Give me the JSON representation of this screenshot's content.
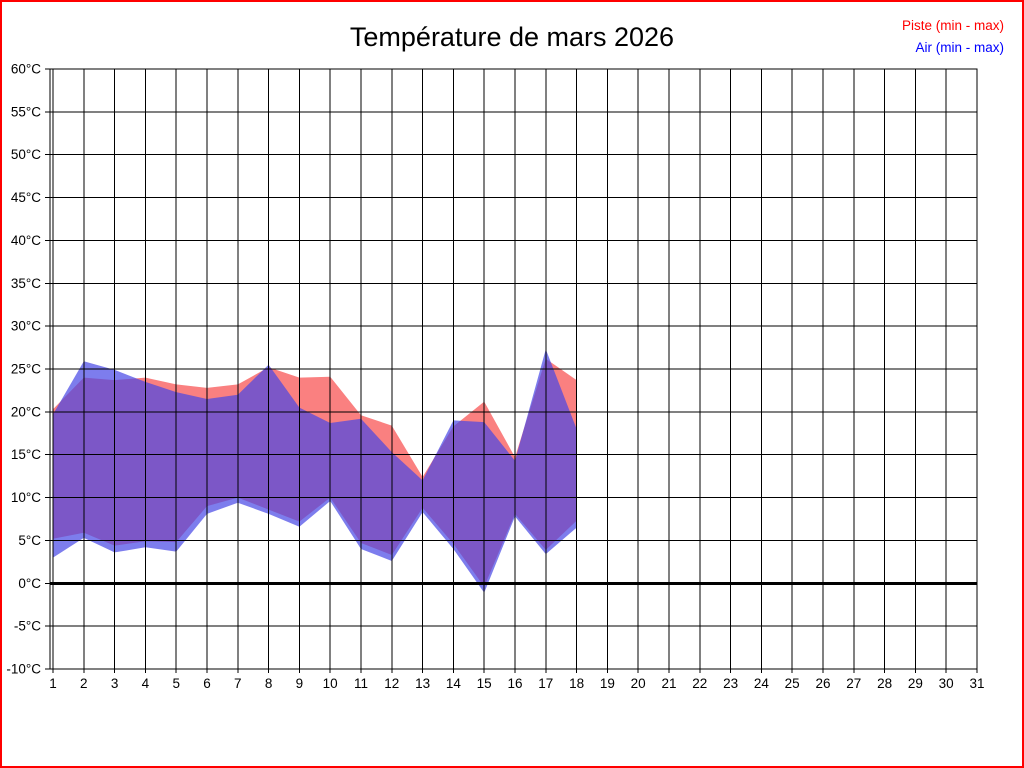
{
  "window": {
    "background": "#FFFFFF",
    "border_color": "#FF0000"
  },
  "title": "Température de mars 2026",
  "legend": [
    {
      "label": "Piste (min - max)",
      "color": "#FF0000"
    },
    {
      "label": "Air (min - max)",
      "color": "#0000FF"
    }
  ],
  "chart_data": {
    "type": "area",
    "subtype": "min-max range bands, two overlapping series",
    "title": "Température de mars 2026",
    "xlabel": "",
    "ylabel": "",
    "x_ticks": [
      1,
      2,
      3,
      4,
      5,
      6,
      7,
      8,
      9,
      10,
      11,
      12,
      13,
      14,
      15,
      16,
      17,
      18,
      19,
      20,
      21,
      22,
      23,
      24,
      25,
      26,
      27,
      28,
      29,
      30,
      31
    ],
    "y_ticks": [
      60,
      55,
      50,
      45,
      40,
      35,
      30,
      25,
      20,
      15,
      10,
      5,
      0,
      -5,
      -10
    ],
    "y_unit": "°C",
    "ylim": [
      -10,
      60
    ],
    "xlim": [
      1,
      31
    ],
    "grid": true,
    "grid_color": "#000000",
    "zero_line": {
      "value": 0,
      "color": "#000000",
      "width": 3
    },
    "days": [
      1,
      2,
      3,
      4,
      5,
      6,
      7,
      8,
      9,
      10,
      11,
      12,
      13,
      14,
      15,
      16,
      17,
      18
    ],
    "series": [
      {
        "name": "Piste (min - max)",
        "fill": "#FA8080",
        "opacity": 1,
        "min": [
          5.2,
          5.9,
          4.4,
          4.9,
          4.8,
          9.0,
          10.0,
          8.6,
          7.2,
          10.0,
          4.7,
          3.3,
          8.8,
          4.6,
          -0.4,
          8.1,
          3.9,
          7.3
        ],
        "max": [
          20.3,
          24.0,
          23.7,
          24.0,
          23.2,
          22.8,
          23.2,
          25.2,
          24.0,
          24.1,
          19.6,
          18.4,
          12.4,
          18.3,
          21.2,
          14.7,
          26.2,
          23.7
        ]
      },
      {
        "name": "Air (min - max)",
        "fill": "#4646E6",
        "opacity": 0.7,
        "min": [
          3.0,
          5.3,
          3.6,
          4.2,
          3.7,
          8.1,
          9.4,
          8.1,
          6.6,
          9.6,
          4.0,
          2.6,
          8.3,
          4.0,
          -1.1,
          7.8,
          3.4,
          6.5
        ],
        "max": [
          19.7,
          25.9,
          24.9,
          23.5,
          22.3,
          21.5,
          22.0,
          25.5,
          20.5,
          18.7,
          19.2,
          15.3,
          12.0,
          19.0,
          18.8,
          14.3,
          27.3,
          18.0
        ]
      }
    ],
    "legend_position": "top-right"
  }
}
